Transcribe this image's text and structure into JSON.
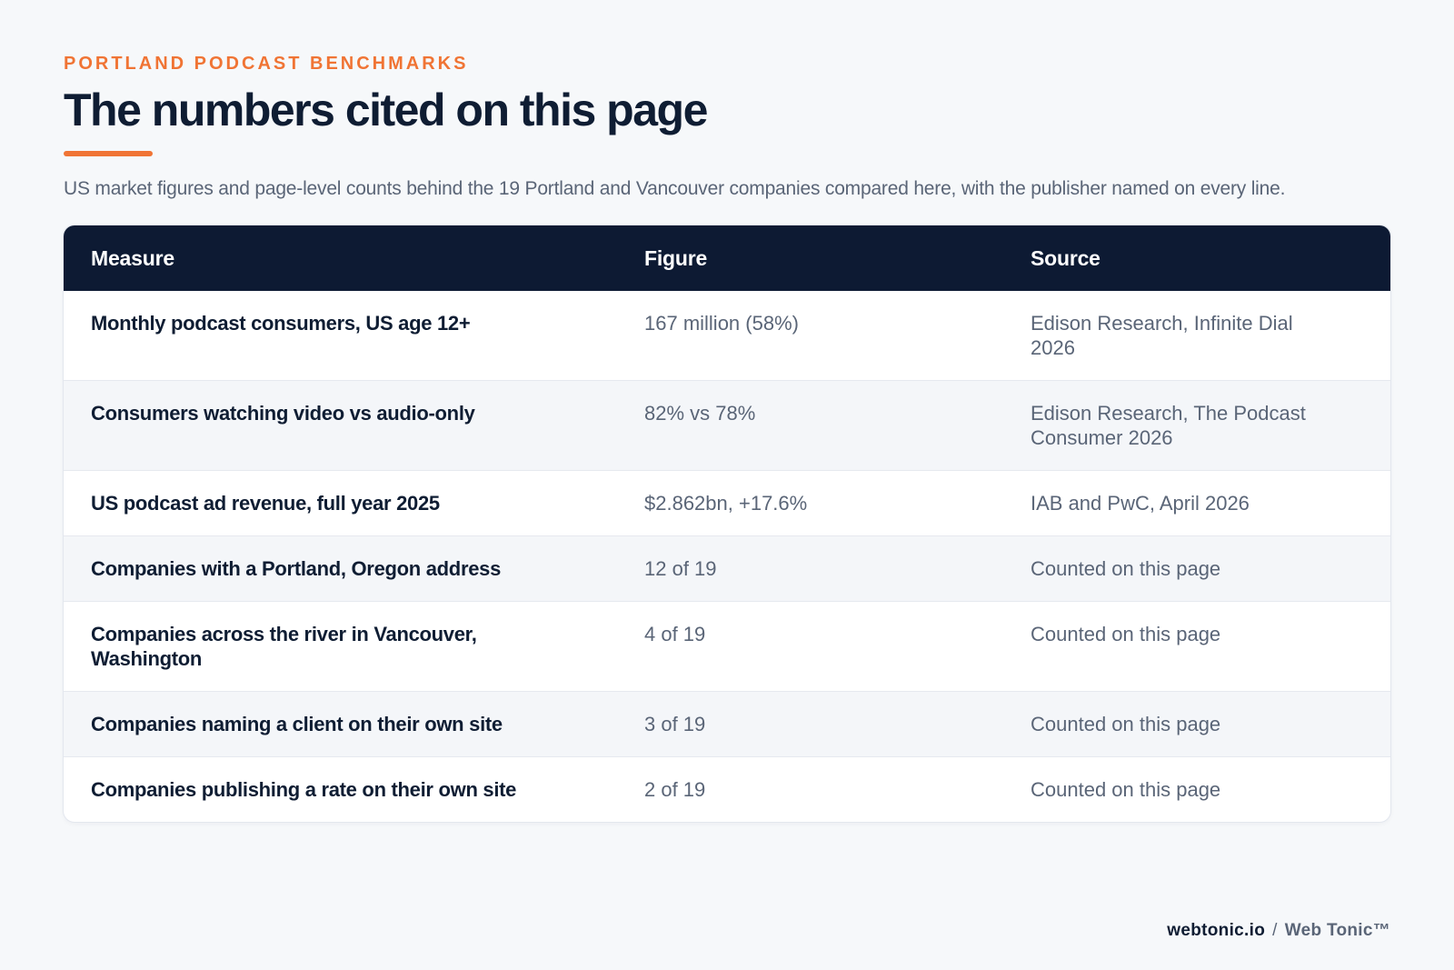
{
  "header": {
    "eyebrow": "PORTLAND PODCAST BENCHMARKS",
    "title": "The numbers cited on this page",
    "subtitle": "US market figures and page-level counts behind the 19 Portland and Vancouver companies compared here, with the publisher named on every line."
  },
  "table": {
    "columns": [
      "Measure",
      "Figure",
      "Source"
    ],
    "rows": [
      {
        "measure": "Monthly podcast consumers, US age 12+",
        "figure": "167 million (58%)",
        "source": "Edison Research, Infinite Dial 2026"
      },
      {
        "measure": "Consumers watching video vs audio-only",
        "figure": "82% vs 78%",
        "source": "Edison Research, The Podcast Consumer 2026"
      },
      {
        "measure": "US podcast ad revenue, full year 2025",
        "figure": "$2.862bn, +17.6%",
        "source": "IAB and PwC, April 2026"
      },
      {
        "measure": "Companies with a Portland, Oregon address",
        "figure": "12 of 19",
        "source": "Counted on this page"
      },
      {
        "measure": "Companies across the river in Vancouver, Washington",
        "figure": "4 of 19",
        "source": "Counted on this page"
      },
      {
        "measure": "Companies naming a client on their own site",
        "figure": "3 of 19",
        "source": "Counted on this page"
      },
      {
        "measure": "Companies publishing a rate on their own site",
        "figure": "2 of 19",
        "source": "Counted on this page"
      }
    ]
  },
  "footer": {
    "domain": "webtonic.io",
    "separator": "/",
    "brand": "Web Tonic™"
  },
  "colors": {
    "accent": "#f07434",
    "header_bg": "#0d1a33",
    "page_bg": "#f6f8fa",
    "muted_text": "#5a6577"
  }
}
